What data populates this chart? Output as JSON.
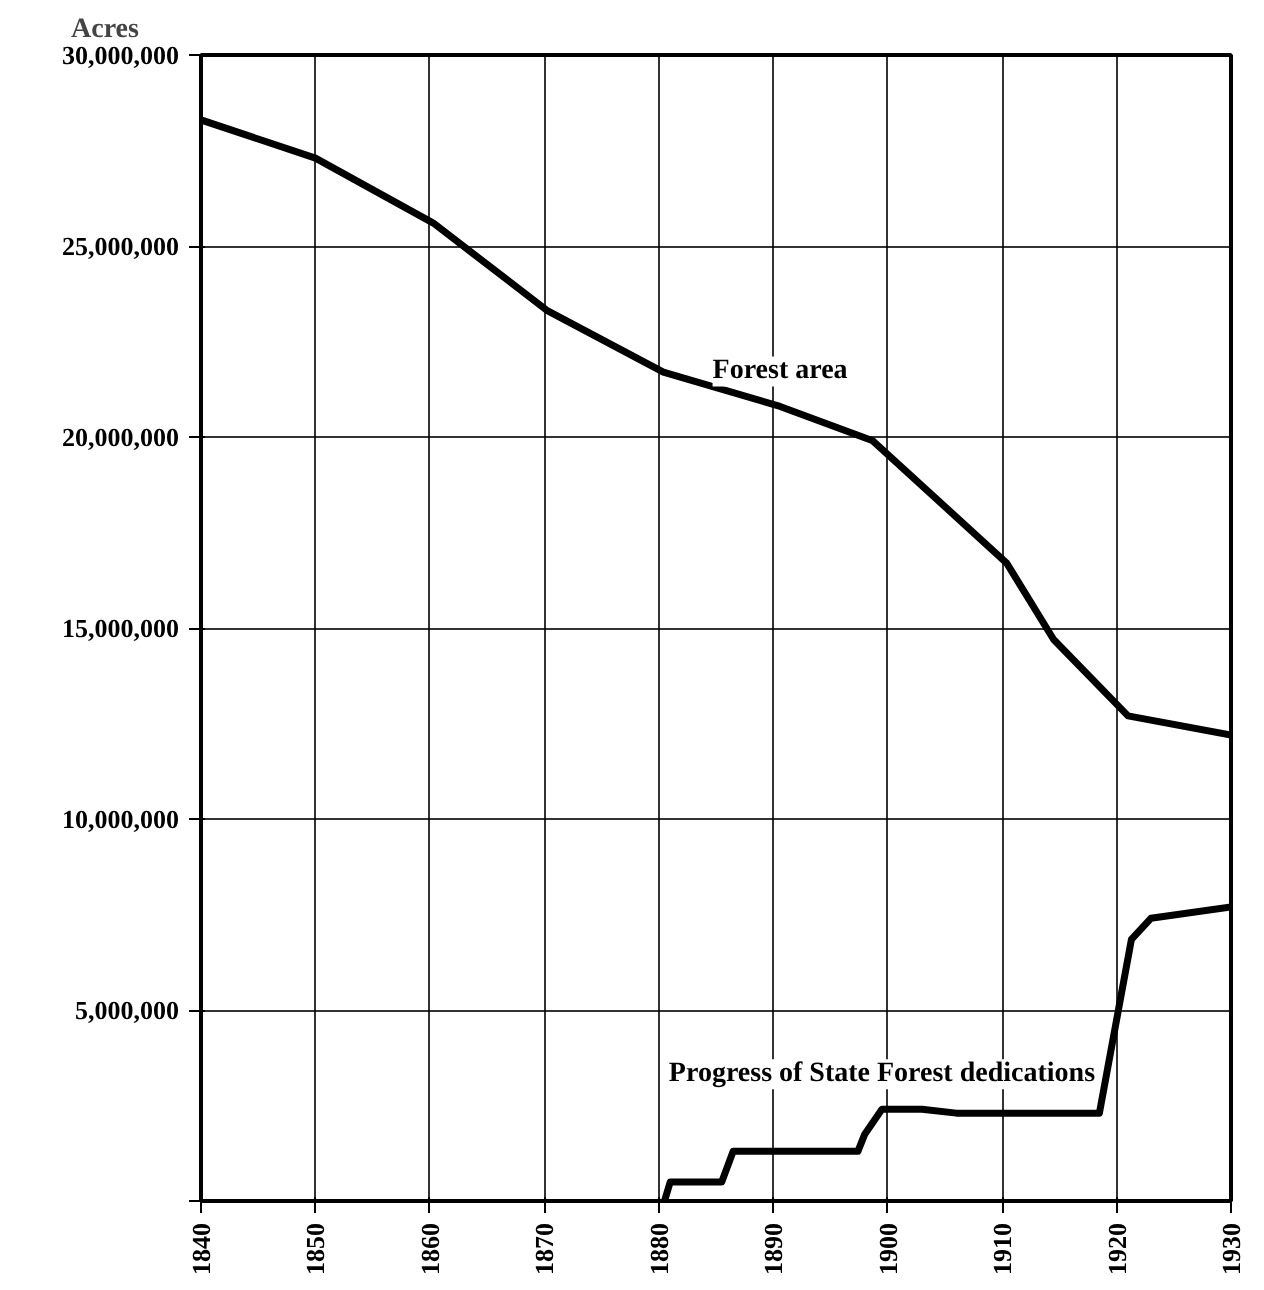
{
  "chart_data": {
    "type": "line",
    "ylabel": "Acres",
    "xlim": [
      1840,
      1930
    ],
    "ylim": [
      0,
      30000000
    ],
    "xticks": [
      1840,
      1850,
      1860,
      1870,
      1880,
      1890,
      1900,
      1910,
      1920,
      1930
    ],
    "yticks": [
      {
        "value": 0,
        "label": null
      },
      {
        "value": 5000000,
        "label": "5,000,000"
      },
      {
        "value": 10000000,
        "label": "10,000,000"
      },
      {
        "value": 15000000,
        "label": "15,000,000"
      },
      {
        "value": 20000000,
        "label": "20,000,000"
      },
      {
        "value": 25000000,
        "label": "25,000,000"
      },
      {
        "value": 30000000,
        "label": "30,000,000"
      }
    ],
    "grid": true,
    "marker": "none",
    "line_style": "solid",
    "series": [
      {
        "name": "Forest area",
        "color": "#000000",
        "x": [
          1840,
          1850,
          1860.3,
          1870.3,
          1880.4,
          1890.6,
          1898.7,
          1910.4,
          1914.5,
          1921,
          1930
        ],
        "values": [
          28300000,
          27300000,
          25600000,
          23300000,
          21700000,
          20800000,
          19900000,
          16700000,
          14700000,
          12700000,
          12200000
        ]
      },
      {
        "name": "Progress of State Forest dedications",
        "color": "#000000",
        "x": [
          1880.5,
          1881,
          1885.5,
          1886.5,
          1897.4,
          1898,
          1899.5,
          1903,
          1906,
          1918.5,
          1921.3,
          1923,
          1930
        ],
        "values": [
          0,
          500000,
          500000,
          1300000,
          1300000,
          1750000,
          2400000,
          2400000,
          2300000,
          2300000,
          6850000,
          7400000,
          7700000
        ]
      }
    ]
  }
}
